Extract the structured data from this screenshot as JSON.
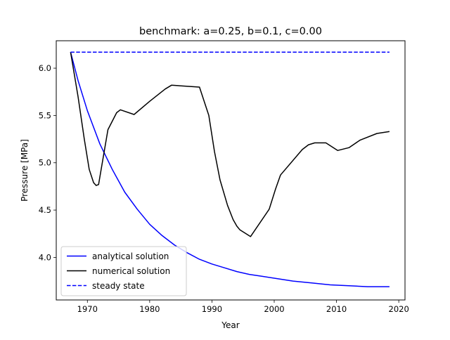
{
  "chart_data": {
    "type": "line",
    "title": "benchmark: a=0.25, b=0.1, c=0.00",
    "xlabel": "Year",
    "ylabel": "Pressure [MPa]",
    "xlim": [
      1965,
      2021
    ],
    "ylim": [
      3.55,
      6.29
    ],
    "xticks": [
      1970,
      1980,
      1990,
      2000,
      2010,
      2020
    ],
    "yticks": [
      4.0,
      4.5,
      5.0,
      5.5,
      6.0
    ],
    "xtick_labels": [
      "1970",
      "1980",
      "1990",
      "2000",
      "2010",
      "2020"
    ],
    "ytick_labels": [
      "4.0",
      "4.5",
      "5.0",
      "5.5",
      "6.0"
    ],
    "grid": false,
    "legend_position": "lower-left",
    "series": [
      {
        "name": "analytical solution",
        "color": "#0000ff",
        "style": "solid",
        "x": [
          1967.3,
          1968.5,
          1970,
          1972,
          1974,
          1976,
          1978,
          1980,
          1982,
          1984,
          1986,
          1988,
          1990,
          1992,
          1994,
          1996,
          1998,
          2000,
          2003,
          2006,
          2009,
          2012,
          2015,
          2018.5
        ],
        "y": [
          6.17,
          5.87,
          5.55,
          5.2,
          4.93,
          4.69,
          4.51,
          4.35,
          4.23,
          4.13,
          4.05,
          3.98,
          3.93,
          3.89,
          3.85,
          3.82,
          3.8,
          3.78,
          3.75,
          3.73,
          3.71,
          3.7,
          3.69,
          3.69
        ]
      },
      {
        "name": "numerical solution",
        "color": "#000000",
        "style": "solid",
        "x": [
          1967.3,
          1968.5,
          1969.5,
          1970.3,
          1971,
          1971.4,
          1971.8,
          1973.3,
          1974.7,
          1975.3,
          1977.5,
          1980,
          1982.5,
          1983.5,
          1988,
          1989.5,
          1990.4,
          1991.3,
          1992.5,
          1993.4,
          1994,
          1994.5,
          1996.2,
          1999.2,
          2000.2,
          2001,
          2004.5,
          2005.5,
          2006.5,
          2008.3,
          2010.2,
          2012,
          2013.8,
          2016.5,
          2018.5
        ],
        "y": [
          6.17,
          5.7,
          5.25,
          4.93,
          4.79,
          4.76,
          4.77,
          5.35,
          5.53,
          5.56,
          5.51,
          5.65,
          5.78,
          5.82,
          5.8,
          5.5,
          5.12,
          4.82,
          4.55,
          4.4,
          4.33,
          4.29,
          4.22,
          4.51,
          4.72,
          4.87,
          5.14,
          5.19,
          5.21,
          5.21,
          5.13,
          5.16,
          5.24,
          5.31,
          5.33
        ]
      },
      {
        "name": "steady state",
        "color": "#0000ff",
        "style": "dashed",
        "x": [
          1967.3,
          2018.5
        ],
        "y": [
          6.17,
          6.17
        ]
      }
    ]
  }
}
